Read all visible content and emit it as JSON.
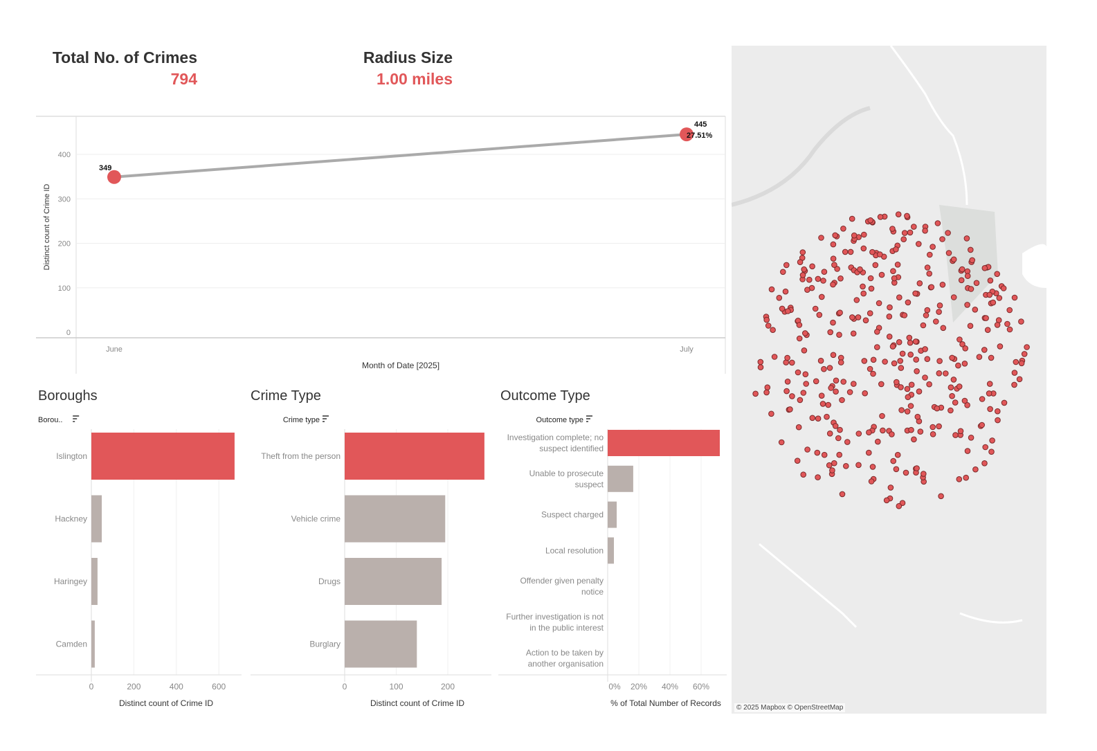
{
  "kpis": {
    "total_title": "Total No. of Crimes",
    "total_value": "794",
    "radius_title": "Radius Size",
    "radius_value": "1.00 miles"
  },
  "colors": {
    "accent": "#e15759",
    "bar": "#bab0ac",
    "line": "#aaaaaa"
  },
  "chart_data": [
    {
      "type": "line",
      "title": "",
      "xlabel": "Month of Date [2025]",
      "ylabel": "Distinct count of Crime ID",
      "categories": [
        "June",
        "July"
      ],
      "values": [
        349,
        445
      ],
      "labels": [
        "349",
        "445"
      ],
      "change_label": "27.51%",
      "yticks": [
        "0",
        "100",
        "200",
        "300",
        "400"
      ],
      "ylim": [
        0,
        480
      ],
      "grid": true
    },
    {
      "type": "bar",
      "title": "Boroughs",
      "header": "Borou..",
      "xlabel": "Distinct count of Crime ID",
      "categories": [
        "Islington",
        "Hackney",
        "Haringey",
        "Camden"
      ],
      "values": [
        674,
        49,
        29,
        16
      ],
      "xticks": [
        "0",
        "200",
        "400",
        "600"
      ],
      "xlim": [
        0,
        680
      ],
      "highlight": 0
    },
    {
      "type": "bar",
      "title": "Crime Type",
      "header": "Crime type",
      "xlabel": "Distinct count of Crime ID",
      "categories": [
        "Theft from the person",
        "Vehicle crime",
        "Drugs",
        "Burglary"
      ],
      "values": [
        271,
        195,
        188,
        140
      ],
      "xticks": [
        "0",
        "100",
        "200"
      ],
      "xlim": [
        0,
        285
      ],
      "highlight": 0
    },
    {
      "type": "bar",
      "title": "Outcome Type",
      "header": "Outcome type",
      "xlabel": "% of Total Number of Records",
      "categories": [
        [
          "Investigation complete; no",
          "suspect identified"
        ],
        [
          "Unable to prosecute",
          "suspect"
        ],
        [
          "Suspect charged"
        ],
        [
          "Local resolution"
        ],
        [
          "Offender given penalty",
          "notice"
        ],
        [
          "Further investigation is not",
          "in the public interest"
        ],
        [
          "Action to be taken by",
          "another organisation"
        ]
      ],
      "values": [
        72,
        16.4,
        5.8,
        4,
        0,
        0,
        0
      ],
      "xticks": [
        "0%",
        "20%",
        "40%",
        "60%"
      ],
      "xlim": [
        0,
        75
      ],
      "highlight": 0
    }
  ],
  "map": {
    "attribution": "© 2025 Mapbox © OpenStreetMap",
    "point_count": 380
  }
}
